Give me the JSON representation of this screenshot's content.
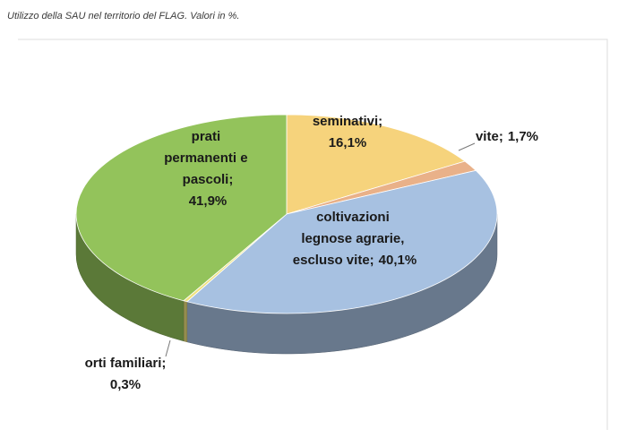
{
  "chart_data": {
    "type": "pie3d",
    "title": "Utilizzo della SAU nel territorio del FLAG. Valori in %.",
    "categories": [
      "seminativi;",
      "vite;",
      "coltivazioni legnose agrarie, escluso vite;",
      "orti familiari;",
      "prati permanenti e pascoli;"
    ],
    "values": [
      16.1,
      1.7,
      40.1,
      0.3,
      41.9
    ],
    "value_labels": [
      "16,1%",
      "1,7%",
      "40,1%",
      "0,3%",
      "41,9%"
    ],
    "colors": [
      "#f6d37c",
      "#e9b189",
      "#a7c1e1",
      "#efe27e",
      "#93c35b"
    ]
  }
}
